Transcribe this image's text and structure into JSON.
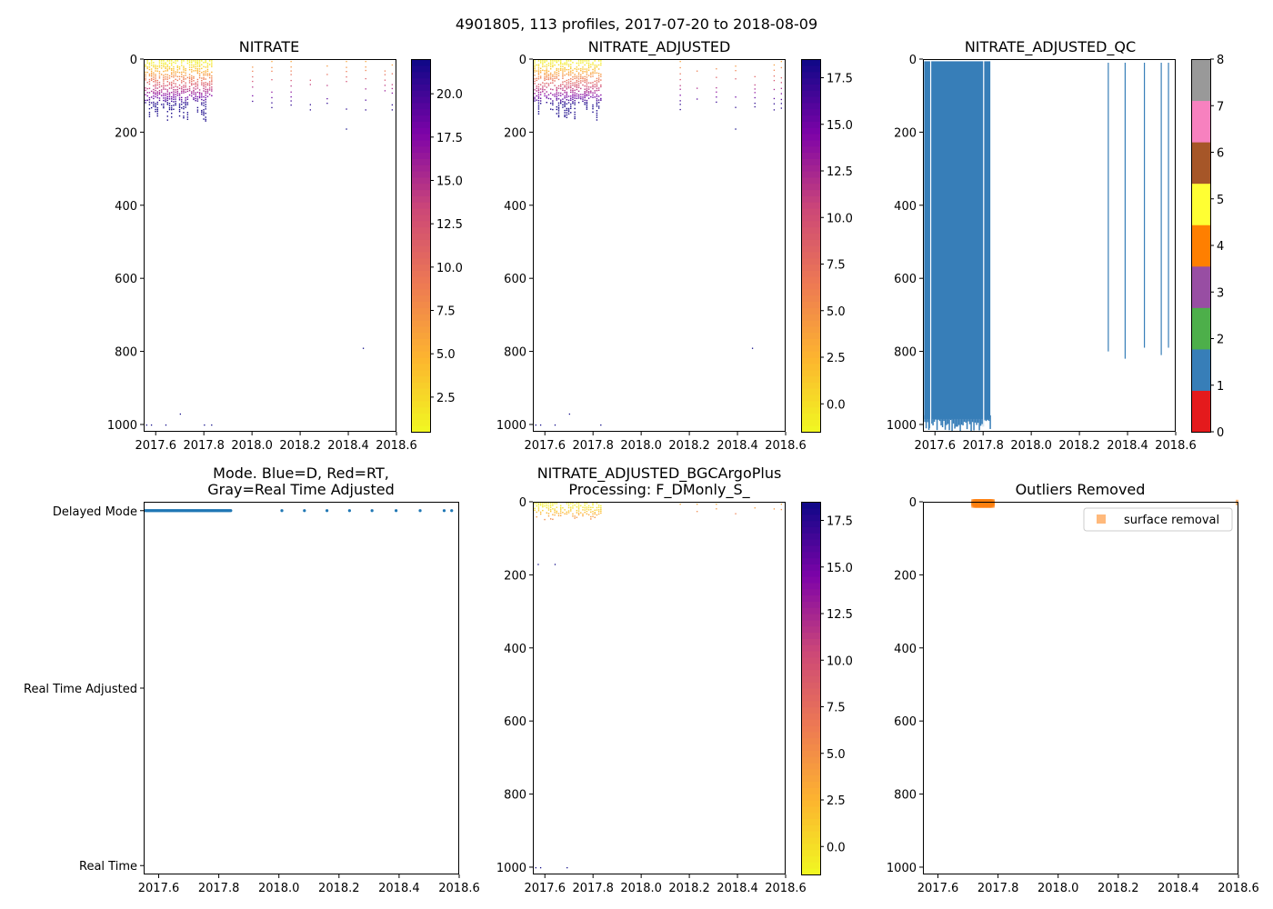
{
  "figure": {
    "suptitle": "4901805, 113 profiles, 2017-07-20 to 2018-08-09"
  },
  "chart_data": [
    {
      "id": "nitrate",
      "type": "heatmap",
      "title": "NITRATE",
      "xlabel": "",
      "ylabel": "",
      "xlim": [
        2017.55,
        2018.6
      ],
      "ylim": [
        1020,
        0
      ],
      "xticks": [
        2017.6,
        2017.8,
        2018.0,
        2018.2,
        2018.4,
        2018.6
      ],
      "xtick_labels": [
        "2017.6",
        "2017.8",
        "2018.0",
        "2018.2",
        "2018.4",
        "2018.6"
      ],
      "yticks": [
        0,
        200,
        400,
        600,
        800,
        1000
      ],
      "ytick_labels": [
        "0",
        "200",
        "400",
        "600",
        "800",
        "1000"
      ],
      "colormap": "plasma_r",
      "clim": [
        0.5,
        22
      ],
      "colorbar_ticks": [
        2.5,
        5.0,
        7.5,
        10.0,
        12.5,
        15.0,
        17.5,
        20.0
      ],
      "colorbar_tick_labels": [
        "2.5",
        "5.0",
        "7.5",
        "10.0",
        "12.5",
        "15.0",
        "17.5",
        "20.0"
      ],
      "dense_period": [
        2017.555,
        2017.83
      ],
      "dense_depth_max": 170,
      "sparse_profiles_x": [
        2018.0,
        2018.08,
        2018.16,
        2018.24,
        2018.31,
        2018.39,
        2018.47,
        2018.55,
        2018.58
      ],
      "sparse_depth_max": 140,
      "deep_points": [
        [
          2017.56,
          1000
        ],
        [
          2017.58,
          1000
        ],
        [
          2017.64,
          1000
        ],
        [
          2017.7,
          970
        ],
        [
          2017.8,
          1000
        ],
        [
          2017.83,
          1000
        ],
        [
          2018.46,
          790
        ],
        [
          2018.39,
          190
        ]
      ]
    },
    {
      "id": "nitrate_adjusted",
      "type": "heatmap",
      "title": "NITRATE_ADJUSTED",
      "xlabel": "",
      "ylabel": "",
      "xlim": [
        2017.55,
        2018.6
      ],
      "ylim": [
        1020,
        0
      ],
      "xticks": [
        2017.6,
        2017.8,
        2018.0,
        2018.2,
        2018.4,
        2018.6
      ],
      "xtick_labels": [
        "2017.6",
        "2017.8",
        "2018.0",
        "2018.2",
        "2018.4",
        "2018.6"
      ],
      "yticks": [
        0,
        200,
        400,
        600,
        800,
        1000
      ],
      "ytick_labels": [
        "0",
        "200",
        "400",
        "600",
        "800",
        "1000"
      ],
      "colormap": "plasma_r",
      "clim": [
        -1.5,
        18.5
      ],
      "colorbar_ticks": [
        0.0,
        2.5,
        5.0,
        7.5,
        10.0,
        12.5,
        15.0,
        17.5
      ],
      "colorbar_tick_labels": [
        "0.0",
        "2.5",
        "5.0",
        "7.5",
        "10.0",
        "12.5",
        "15.0",
        "17.5"
      ],
      "dense_period": [
        2017.555,
        2017.83
      ],
      "dense_depth_max": 170,
      "sparse_profiles_x": [
        2018.16,
        2018.23,
        2018.31,
        2018.39,
        2018.47,
        2018.55,
        2018.58
      ],
      "sparse_depth_max": 140,
      "deep_points": [
        [
          2017.56,
          1000
        ],
        [
          2017.58,
          1000
        ],
        [
          2017.64,
          1000
        ],
        [
          2017.7,
          970
        ],
        [
          2017.83,
          1000
        ],
        [
          2018.46,
          790
        ],
        [
          2018.39,
          190
        ]
      ]
    },
    {
      "id": "nitrate_adjusted_qc",
      "type": "heatmap",
      "title": "NITRATE_ADJUSTED_QC",
      "xlabel": "",
      "ylabel": "",
      "xlim": [
        2017.55,
        2018.6
      ],
      "ylim": [
        1020,
        0
      ],
      "xticks": [
        2017.6,
        2017.8,
        2018.0,
        2018.2,
        2018.4,
        2018.6
      ],
      "xtick_labels": [
        "2017.6",
        "2017.8",
        "2018.0",
        "2018.2",
        "2018.4",
        "2018.6"
      ],
      "yticks": [
        0,
        200,
        400,
        600,
        800,
        1000
      ],
      "ytick_labels": [
        "0",
        "200",
        "400",
        "600",
        "800",
        "1000"
      ],
      "qc_colors": [
        "#e41a1c",
        "#377eb8",
        "#4daf4a",
        "#984ea3",
        "#ff7f00",
        "#ffff33",
        "#a65628",
        "#f781bf",
        "#999999"
      ],
      "colorbar_ticks": [
        0,
        1,
        2,
        3,
        4,
        5,
        6,
        7,
        8
      ],
      "colorbar_tick_labels": [
        "0",
        "1",
        "2",
        "3",
        "4",
        "5",
        "6",
        "7",
        "8"
      ],
      "qc_block": {
        "x_start": 2017.555,
        "x_end": 2017.83,
        "depth_end": 1010,
        "flag": 1
      },
      "qc_gaps_x": [
        2017.58,
        2017.8
      ],
      "qc_lines": [
        {
          "x": 2018.32,
          "depth_end": 800
        },
        {
          "x": 2018.39,
          "depth_end": 820
        },
        {
          "x": 2018.47,
          "depth_end": 790
        },
        {
          "x": 2018.54,
          "depth_end": 810
        },
        {
          "x": 2018.57,
          "depth_end": 790
        }
      ]
    },
    {
      "id": "mode",
      "type": "scatter",
      "title": "Mode. Blue=D, Red=RT,\nGray=Real Time Adjusted",
      "title_lines": [
        "Mode. Blue=D, Red=RT,",
        "Gray=Real Time Adjusted"
      ],
      "xlabel": "",
      "ylabel": "",
      "xlim": [
        2017.55,
        2018.6
      ],
      "ylim": [
        -0.05,
        2.05
      ],
      "xticks": [
        2017.6,
        2017.8,
        2018.0,
        2018.2,
        2018.4,
        2018.6
      ],
      "xtick_labels": [
        "2017.6",
        "2017.8",
        "2018.0",
        "2018.2",
        "2018.4",
        "2018.6"
      ],
      "ytick_labels": [
        "Real Time",
        "Real Time Adjusted",
        "Delayed Mode"
      ],
      "series": [
        {
          "name": "Delayed Mode",
          "color": "#1f77b4",
          "y": 2,
          "x_dense_range": [
            2017.555,
            2017.84
          ],
          "x_sparse": [
            2018.01,
            2018.085,
            2018.16,
            2018.235,
            2018.31,
            2018.39,
            2018.47,
            2018.55,
            2018.575
          ]
        }
      ]
    },
    {
      "id": "nitrate_bgcargoplus",
      "type": "heatmap",
      "title": "NITRATE_ADJUSTED_BGCArgoPlus\nProcessing: F_DMonly_S_",
      "title_lines": [
        "NITRATE_ADJUSTED_BGCArgoPlus",
        "Processing: F_DMonly_S_"
      ],
      "xlabel": "",
      "ylabel": "",
      "xlim": [
        2017.55,
        2018.6
      ],
      "ylim": [
        1020,
        0
      ],
      "xticks": [
        2017.6,
        2017.8,
        2018.0,
        2018.2,
        2018.4,
        2018.6
      ],
      "xtick_labels": [
        "2017.6",
        "2017.8",
        "2018.0",
        "2018.2",
        "2018.4",
        "2018.6"
      ],
      "yticks": [
        0,
        200,
        400,
        600,
        800,
        1000
      ],
      "ytick_labels": [
        "0",
        "200",
        "400",
        "600",
        "800",
        "1000"
      ],
      "colormap": "plasma_r",
      "clim": [
        -1.5,
        18.5
      ],
      "colorbar_ticks": [
        0.0,
        2.5,
        5.0,
        7.5,
        10.0,
        12.5,
        15.0,
        17.5
      ],
      "colorbar_tick_labels": [
        "0.0",
        "2.5",
        "5.0",
        "7.5",
        "10.0",
        "12.5",
        "15.0",
        "17.5"
      ],
      "dense_period": [
        2017.555,
        2017.83
      ],
      "dense_depth_max": 48,
      "sparse_profiles_x": [
        2018.16,
        2018.23,
        2018.31,
        2018.39,
        2018.47,
        2018.55,
        2018.58
      ],
      "sparse_depth_max": 35,
      "deep_points": [
        [
          2017.57,
          170
        ],
        [
          2017.64,
          170
        ],
        [
          2017.56,
          1000
        ],
        [
          2017.58,
          1000
        ],
        [
          2017.69,
          1000
        ]
      ]
    },
    {
      "id": "outliers",
      "type": "scatter",
      "title": "Outliers Removed",
      "xlabel": "",
      "ylabel": "",
      "xlim": [
        2017.55,
        2018.6
      ],
      "ylim": [
        1020,
        0
      ],
      "xticks": [
        2017.6,
        2017.8,
        2018.0,
        2018.2,
        2018.4,
        2018.6
      ],
      "xtick_labels": [
        "2017.6",
        "2017.8",
        "2018.0",
        "2018.2",
        "2018.4",
        "2018.6"
      ],
      "yticks": [
        0,
        200,
        400,
        600,
        800,
        1000
      ],
      "ytick_labels": [
        "0",
        "200",
        "400",
        "600",
        "800",
        "1000"
      ],
      "legend": {
        "label": "surface removal",
        "color": "#ff7f0e",
        "placement": "top-right"
      },
      "series": [
        {
          "name": "surface removal",
          "color": "#ff7f0e",
          "x_range": [
            2017.72,
            2017.78
          ],
          "depth_range": [
            0,
            9
          ],
          "x_extra": [
            2018.6
          ]
        }
      ]
    }
  ]
}
